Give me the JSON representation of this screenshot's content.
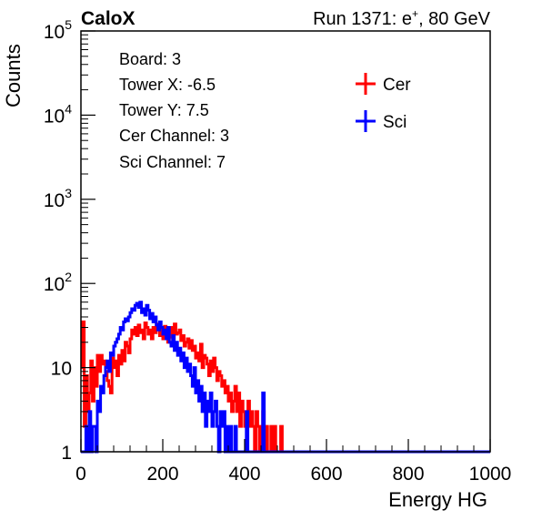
{
  "header": {
    "experiment": "CaloX",
    "run_prefix": "Run 1371: e",
    "run_charge": "+",
    "run_suffix": ", 80 GeV"
  },
  "info": {
    "lines": [
      "Board: 3",
      "Tower X: -6.5",
      "Tower Y: 7.5",
      "Cer Channel: 3",
      "Sci Channel: 7"
    ]
  },
  "legend": {
    "position": "top-right",
    "items": [
      {
        "label": "Cer",
        "color": "#ff0000"
      },
      {
        "label": "Sci",
        "color": "#0000ff"
      }
    ]
  },
  "chart_data": {
    "type": "histogram",
    "title": "",
    "xlabel": "Energy HG",
    "ylabel": "Counts",
    "xlim": [
      0,
      1000
    ],
    "ylim": [
      1,
      100000
    ],
    "yscale": "log",
    "grid": false,
    "x_ticks": [
      0,
      200,
      400,
      600,
      800,
      1000
    ],
    "y_tick_labels": [
      "1",
      "10",
      "10^2",
      "10^3",
      "10^4",
      "10^5"
    ],
    "bin_width": 4,
    "series": [
      {
        "name": "Cer",
        "color": "#ff0000",
        "values": [
          10,
          35,
          2,
          8,
          3,
          5,
          12,
          4,
          10,
          6,
          14,
          9,
          14,
          11,
          12,
          9,
          7,
          6,
          5,
          13,
          10,
          12,
          8,
          14,
          11,
          16,
          12,
          20,
          18,
          15,
          22,
          28,
          25,
          30,
          24,
          32,
          26,
          28,
          22,
          34,
          30,
          25,
          28,
          22,
          30,
          26,
          33,
          29,
          24,
          28,
          22,
          31,
          27,
          20,
          23,
          30,
          19,
          33,
          25,
          26,
          28,
          21,
          24,
          18,
          20,
          22,
          17,
          21,
          16,
          18,
          13,
          15,
          12,
          19,
          10,
          14,
          13,
          11,
          8,
          12,
          9,
          13,
          10,
          7,
          9,
          8,
          6,
          7,
          5,
          6,
          4,
          5,
          3,
          4,
          6,
          3,
          5,
          2,
          4,
          3,
          2,
          3,
          4,
          2,
          3,
          2,
          1,
          3,
          2,
          1,
          2,
          3,
          1,
          2,
          1,
          1,
          2,
          1,
          2,
          1,
          1,
          1,
          2,
          1,
          1,
          1,
          1,
          1,
          1,
          1
        ]
      },
      {
        "name": "Sci",
        "color": "#0000ff",
        "values": [
          1,
          1,
          1,
          2,
          1,
          3,
          1,
          2,
          2,
          1,
          4,
          3,
          6,
          5,
          8,
          10,
          12,
          9,
          15,
          14,
          18,
          20,
          22,
          25,
          30,
          28,
          35,
          38,
          36,
          40,
          45,
          50,
          48,
          55,
          58,
          52,
          60,
          45,
          50,
          42,
          55,
          48,
          38,
          44,
          35,
          40,
          32,
          28,
          35,
          30,
          25,
          28,
          22,
          30,
          20,
          18,
          24,
          16,
          20,
          14,
          17,
          12,
          15,
          10,
          13,
          9,
          11,
          8,
          6,
          10,
          5,
          7,
          4,
          6,
          3,
          5,
          2,
          4,
          3,
          5,
          2,
          3,
          4,
          2,
          1,
          3,
          2,
          3,
          1,
          2,
          1,
          2,
          1,
          1,
          2,
          1,
          1,
          1,
          1,
          1,
          1,
          3,
          1,
          1,
          1,
          1,
          1,
          1,
          1,
          1,
          1,
          5,
          1,
          1,
          1,
          1,
          1
        ]
      }
    ]
  }
}
